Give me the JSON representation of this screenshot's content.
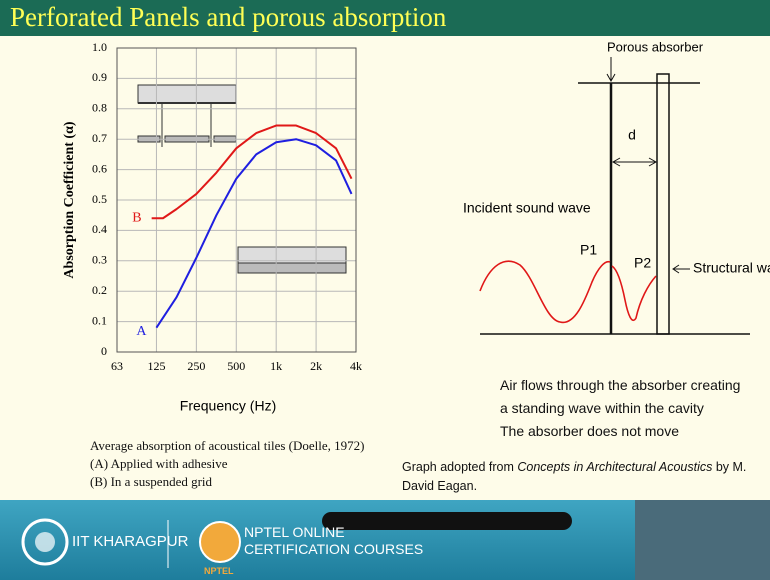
{
  "slide_title": "Perforated Panels and porous absorption",
  "chart_data": {
    "type": "line",
    "y_label": "Absorption Coefficient (α)",
    "x_label": "Frequency (Hz)",
    "log_x": true,
    "grid": true,
    "xlim": [
      63,
      4000
    ],
    "xticks": [
      63,
      125,
      250,
      500,
      {
        "value": 1000,
        "label": "1k"
      },
      {
        "value": 2000,
        "label": "2k"
      },
      {
        "value": 4000,
        "label": "4k"
      }
    ],
    "ylim": [
      0,
      1
    ],
    "yticks": [
      0,
      0.1,
      0.2,
      0.3,
      0.4,
      0.5,
      0.6,
      0.7,
      0.8,
      0.9,
      {
        "value": 1,
        "label": "1.0"
      }
    ],
    "series": [
      {
        "name": "A",
        "color": "#1f1fe0",
        "x": [
          125,
          177,
          250,
          354,
          500,
          707,
          1000,
          1414,
          2000,
          2828,
          3700
        ],
        "values": [
          0.08,
          0.18,
          0.31,
          0.45,
          0.57,
          0.65,
          0.69,
          0.7,
          0.68,
          0.63,
          0.52
        ]
      },
      {
        "name": "B",
        "color": "#e01818",
        "x": [
          115,
          140,
          177,
          250,
          354,
          500,
          707,
          1000,
          1414,
          2000,
          2828,
          3700
        ],
        "values": [
          0.44,
          0.44,
          0.47,
          0.52,
          0.59,
          0.67,
          0.72,
          0.745,
          0.745,
          0.72,
          0.67,
          0.57
        ]
      }
    ]
  },
  "chart_caption": [
    "Average absorption of acoustical tiles (Doelle, 1972)",
    "(A) Applied with adhesive",
    "(B) In a suspended grid"
  ],
  "diagram": {
    "porous_label": "Porous absorber",
    "distance_label": "d",
    "incident_label": "Incident sound wave",
    "p1": "P1",
    "p2": "P2",
    "wall_label": "Structural wal"
  },
  "notes": [
    "Air flows through the absorber creating",
    "a standing wave within the cavity",
    "The absorber does not move"
  ],
  "source": {
    "prefix": "Graph adopted from ",
    "book": "Concepts in Architectural Acoustics",
    "suffix": " by M. David Eagan."
  },
  "footer": {
    "institute": "IIT KHARAGPUR",
    "line1": "NPTEL ONLINE",
    "line2": "CERTIFICATION COURSES",
    "badge": "NPTEL"
  }
}
